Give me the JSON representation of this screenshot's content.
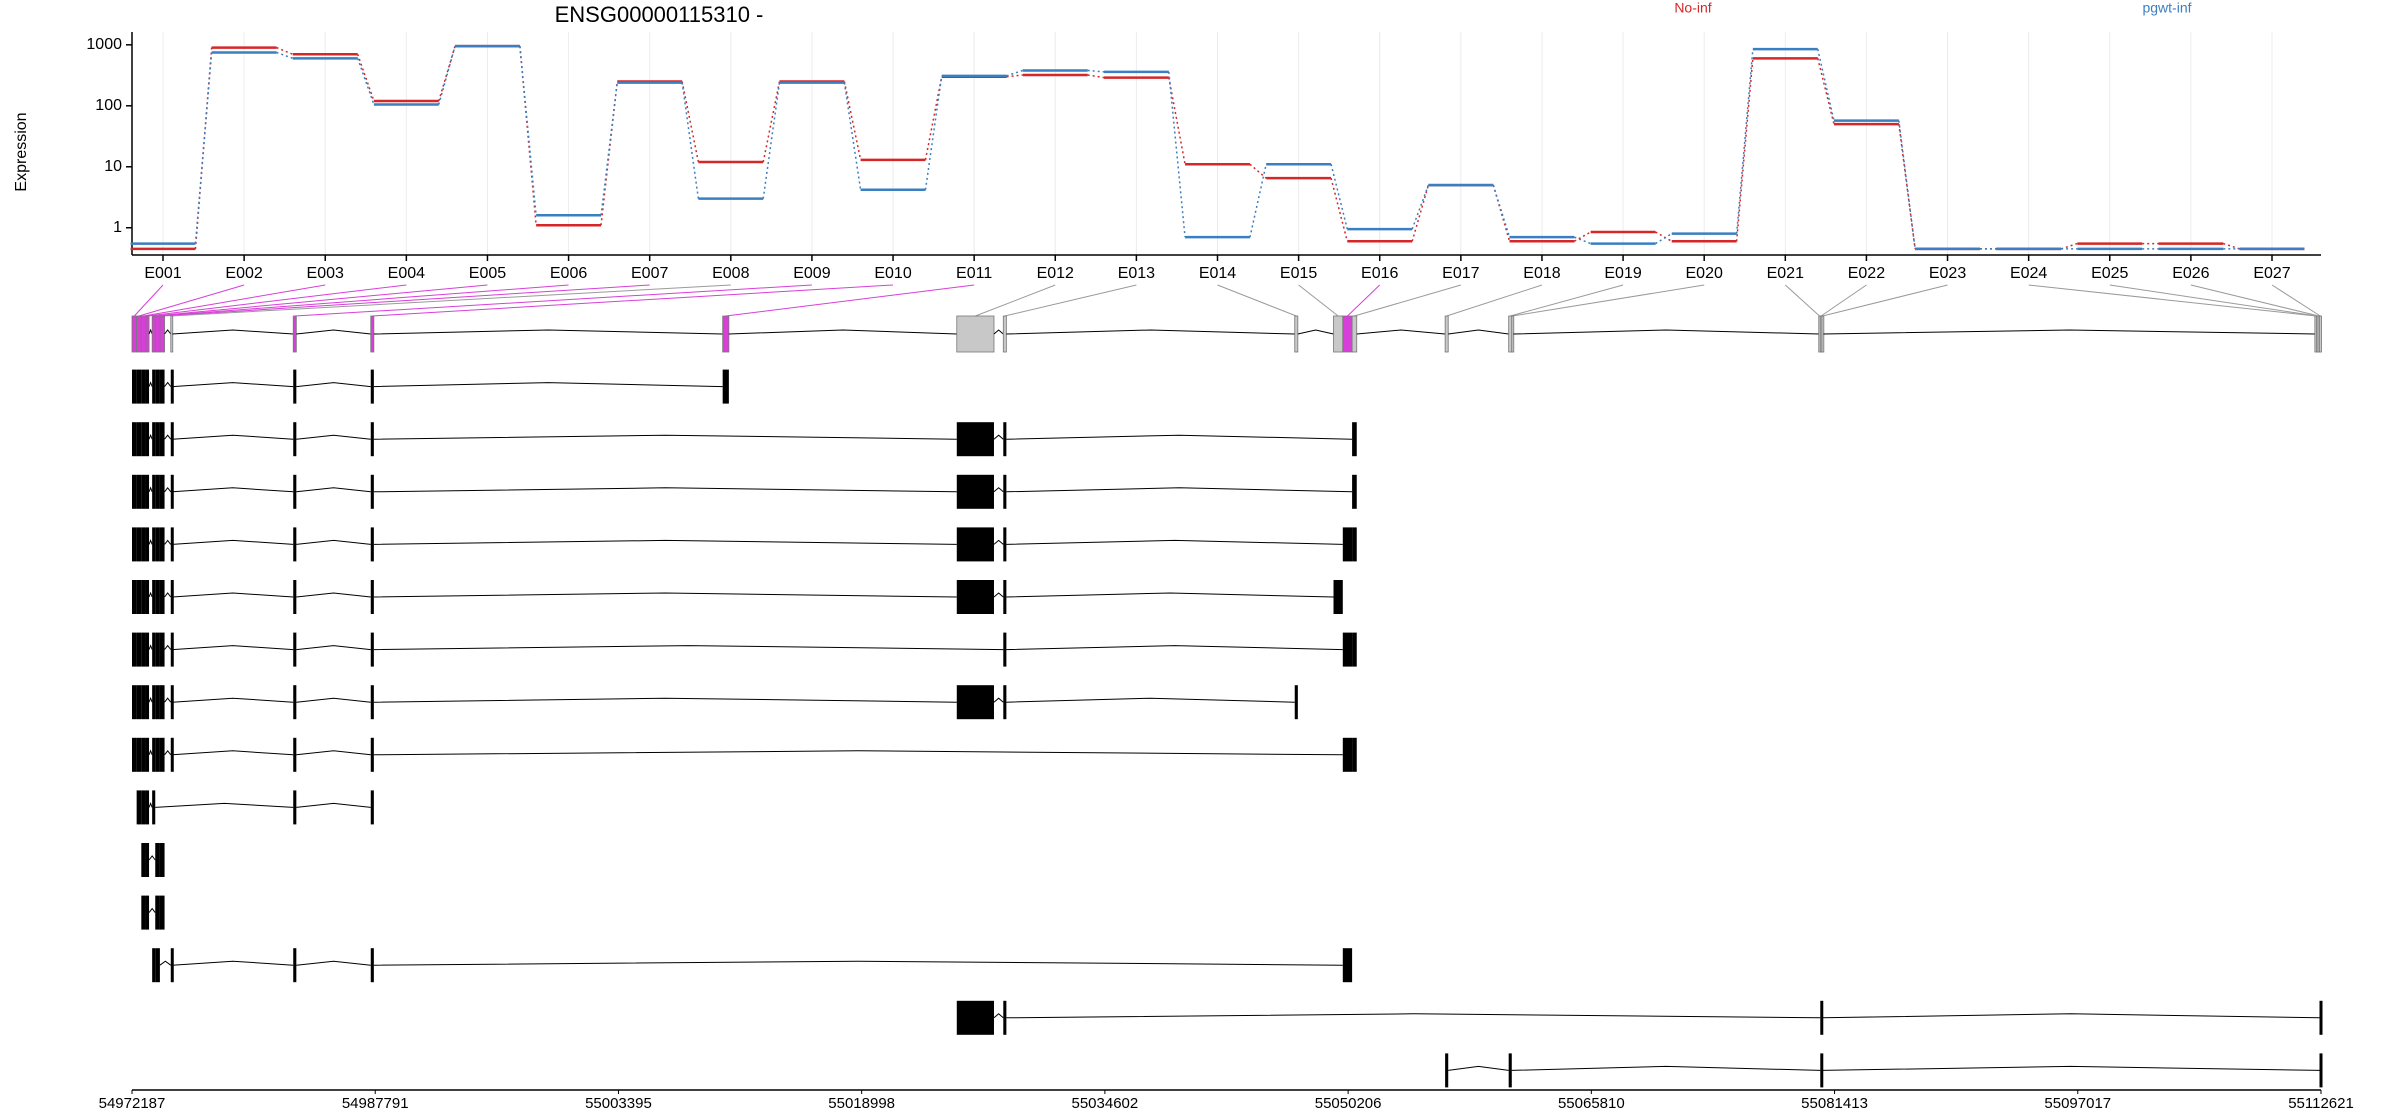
{
  "chart_data": [
    {
      "type": "line",
      "title": "ENSG00000115310 -",
      "y_label": "Expression",
      "log_scale": true,
      "grid": true,
      "categories": [
        "E001",
        "E002",
        "E003",
        "E004",
        "E005",
        "E006",
        "E007",
        "E008",
        "E009",
        "E010",
        "E011",
        "E012",
        "E013",
        "E014",
        "E015",
        "E016",
        "E017",
        "E018",
        "E019",
        "E020",
        "E021",
        "E022",
        "E023",
        "E024",
        "E025",
        "E026",
        "E027"
      ],
      "series": [
        {
          "name": "No-inf",
          "color": "#d62728",
          "values": [
            0.45,
            900,
            700,
            120,
            950,
            1.1,
            250,
            12,
            250,
            13,
            300,
            320,
            290,
            11,
            6.5,
            0.6,
            5,
            0.6,
            0.85,
            0.6,
            600,
            50,
            0.45,
            0.45,
            0.55,
            0.55,
            0.45
          ]
        },
        {
          "name": "pgwt-inf",
          "color": "#3a7fc1",
          "values": [
            0.55,
            750,
            600,
            105,
            950,
            1.6,
            240,
            3,
            240,
            4.2,
            310,
            380,
            360,
            0.7,
            11,
            0.95,
            5,
            0.7,
            0.55,
            0.8,
            850,
            57,
            0.45,
            0.45,
            0.45,
            0.45,
            0.45
          ]
        }
      ],
      "ylim": [
        0.4,
        1200
      ],
      "yticks": [
        1,
        10,
        100,
        1000
      ]
    },
    {
      "type": "gene-model",
      "xlim": [
        54972187,
        55112621
      ],
      "xticks": [
        54972187,
        54987791,
        55003395,
        55018998,
        55034602,
        55050206,
        55065810,
        55081413,
        55097017,
        55112621
      ],
      "exons": [
        [
          54972187,
          54972485
        ],
        [
          54972485,
          54972784
        ],
        [
          54972784,
          54973082
        ],
        [
          54973082,
          54973281
        ],
        [
          54973480,
          54973679
        ],
        [
          54973679,
          54973977
        ],
        [
          54973977,
          54974276
        ],
        [
          54974674,
          54974773
        ],
        [
          54982531,
          54982730
        ],
        [
          54987504,
          54987703
        ],
        [
          55010081,
          55010479
        ],
        [
          55025100,
          55027487
        ],
        [
          55028084,
          55028282
        ],
        [
          55046782,
          55046981
        ],
        [
          55049269,
          55049865
        ],
        [
          55049865,
          55050462
        ],
        [
          55050462,
          55050760
        ],
        [
          55056430,
          55056629
        ],
        [
          55060507,
          55060706
        ],
        [
          55060706,
          55060806
        ],
        [
          55080399,
          55080498
        ],
        [
          55080498,
          55080598
        ],
        [
          55080598,
          55080697
        ],
        [
          55112227,
          55112326
        ],
        [
          55112326,
          55112426
        ],
        [
          55112426,
          55112525
        ],
        [
          55112525,
          55112621
        ]
      ],
      "exon_colors": [
        "#d83fd8",
        "#d83fd8",
        "#d83fd8",
        "#d83fd8",
        "#d83fd8",
        "#d83fd8",
        "#d83fd8",
        "#c8c8c8",
        "#d83fd8",
        "#d83fd8",
        "#d83fd8",
        "#c8c8c8",
        "#c8c8c8",
        "#c8c8c8",
        "#c8c8c8",
        "#d83fd8",
        "#c8c8c8",
        "#c8c8c8",
        "#c8c8c8",
        "#c8c8c8",
        "#c8c8c8",
        "#c8c8c8",
        "#c8c8c8",
        "#c8c8c8",
        "#c8c8c8",
        "#c8c8c8",
        "#c8c8c8"
      ],
      "transcripts": [
        [
          0,
          1,
          2,
          3,
          4,
          5,
          6,
          7,
          8,
          9,
          10
        ],
        [
          0,
          1,
          2,
          3,
          4,
          5,
          6,
          7,
          8,
          9,
          11,
          12,
          16
        ],
        [
          0,
          1,
          2,
          3,
          4,
          5,
          6,
          7,
          8,
          9,
          11,
          12,
          16
        ],
        [
          0,
          1,
          2,
          3,
          4,
          5,
          6,
          7,
          8,
          9,
          11,
          12,
          15,
          16
        ],
        [
          0,
          1,
          2,
          3,
          4,
          5,
          6,
          7,
          8,
          9,
          11,
          12,
          14
        ],
        [
          0,
          1,
          2,
          3,
          4,
          5,
          6,
          7,
          8,
          9,
          12,
          15,
          16
        ],
        [
          0,
          1,
          2,
          3,
          4,
          5,
          6,
          7,
          8,
          9,
          11,
          12,
          13
        ],
        [
          0,
          1,
          2,
          3,
          4,
          5,
          6,
          7,
          8,
          9,
          15,
          16
        ],
        [
          1,
          2,
          3,
          4,
          8,
          9
        ],
        [
          2,
          3,
          5,
          6
        ],
        [
          2,
          3,
          5,
          6
        ],
        [
          4,
          5,
          7,
          8,
          9,
          15
        ],
        [
          11,
          12,
          21,
          26
        ],
        [
          17,
          18,
          21,
          26
        ]
      ]
    }
  ]
}
